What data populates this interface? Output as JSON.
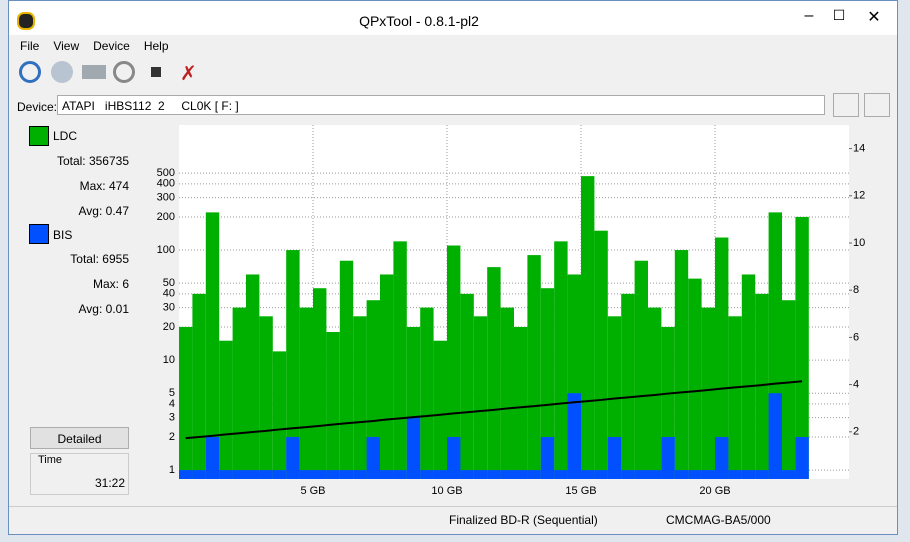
{
  "window": {
    "title": "QPxTool - 0.8.1-pl2"
  },
  "menu": [
    "File",
    "View",
    "Device",
    "Help"
  ],
  "device": {
    "label": "Device:",
    "value": "ATAPI   iHBS112  2     CL0K [ F: ]"
  },
  "panel": {
    "ldc": {
      "total": "Total: 356735",
      "max": "Max: 474",
      "avg": "Avg: 0.47"
    },
    "bis": {
      "total": "Total: 6955",
      "max": "Max: 6",
      "avg": "Avg: 0.01"
    },
    "button": "Detailed",
    "time_label": "Time",
    "time": "31:22"
  },
  "status": [
    "Finalized BD-R (Sequential)",
    "CMCMAG-BA5/000"
  ],
  "chart_data": {
    "type": "bar",
    "log_y": true,
    "grid": true,
    "xlim": [
      0,
      25
    ],
    "xticks": [
      {
        "value": 5,
        "label": "5 GB"
      },
      {
        "value": 10,
        "label": "10 GB"
      },
      {
        "value": 15,
        "label": "15 GB"
      },
      {
        "value": 20,
        "label": "20 GB"
      }
    ],
    "ylim": [
      0.83,
      1370
    ],
    "yticks": [
      1,
      2,
      3,
      4,
      5,
      10,
      20,
      30,
      40,
      50,
      100,
      200,
      300,
      400,
      500
    ],
    "y2lim": [
      0,
      15
    ],
    "y2ticks": [
      2,
      4,
      6,
      8,
      10,
      12,
      14
    ],
    "x": [
      0,
      0.5,
      1,
      1.5,
      2,
      2.5,
      3,
      3.5,
      4,
      4.5,
      5,
      5.5,
      6,
      6.5,
      7,
      7.5,
      8,
      8.5,
      9,
      9.5,
      10,
      10.5,
      11,
      11.5,
      12,
      12.5,
      13,
      13.5,
      14,
      14.5,
      15,
      15.5,
      16,
      16.5,
      17,
      17.5,
      18,
      18.5,
      19,
      19.5,
      20,
      20.5,
      21,
      21.5,
      22,
      22.5,
      23
    ],
    "series": [
      {
        "name": "LDC",
        "color": "#00b000",
        "values": [
          20,
          40,
          220,
          15,
          30,
          60,
          25,
          12,
          100,
          30,
          45,
          18,
          80,
          25,
          35,
          60,
          120,
          20,
          30,
          15,
          110,
          40,
          25,
          70,
          30,
          20,
          90,
          45,
          120,
          60,
          470,
          150,
          25,
          40,
          80,
          30,
          20,
          100,
          55,
          30,
          130,
          25,
          60,
          40,
          220,
          35,
          200
        ]
      },
      {
        "name": "BIS",
        "color": "#0050ff",
        "values": [
          1,
          1,
          2,
          1,
          1,
          1,
          1,
          1,
          2,
          1,
          1,
          1,
          1,
          1,
          2,
          1,
          1,
          3,
          1,
          1,
          2,
          1,
          1,
          1,
          1,
          1,
          1,
          2,
          1,
          5,
          1,
          1,
          2,
          1,
          1,
          1,
          2,
          1,
          1,
          1,
          2,
          1,
          1,
          1,
          5,
          1,
          2
        ]
      },
      {
        "type": "line",
        "axis": "y2",
        "color": "#000000",
        "values": [
          1.73,
          1.78,
          1.83,
          1.89,
          1.94,
          1.99,
          2.04,
          2.1,
          2.15,
          2.2,
          2.25,
          2.31,
          2.36,
          2.41,
          2.46,
          2.52,
          2.57,
          2.62,
          2.67,
          2.72,
          2.78,
          2.83,
          2.88,
          2.93,
          2.99,
          3.04,
          3.09,
          3.14,
          3.2,
          3.25,
          3.3,
          3.35,
          3.41,
          3.46,
          3.51,
          3.56,
          3.62,
          3.67,
          3.72,
          3.77,
          3.83,
          3.88,
          3.93,
          3.98,
          4.04,
          4.09,
          4.14
        ]
      }
    ]
  }
}
